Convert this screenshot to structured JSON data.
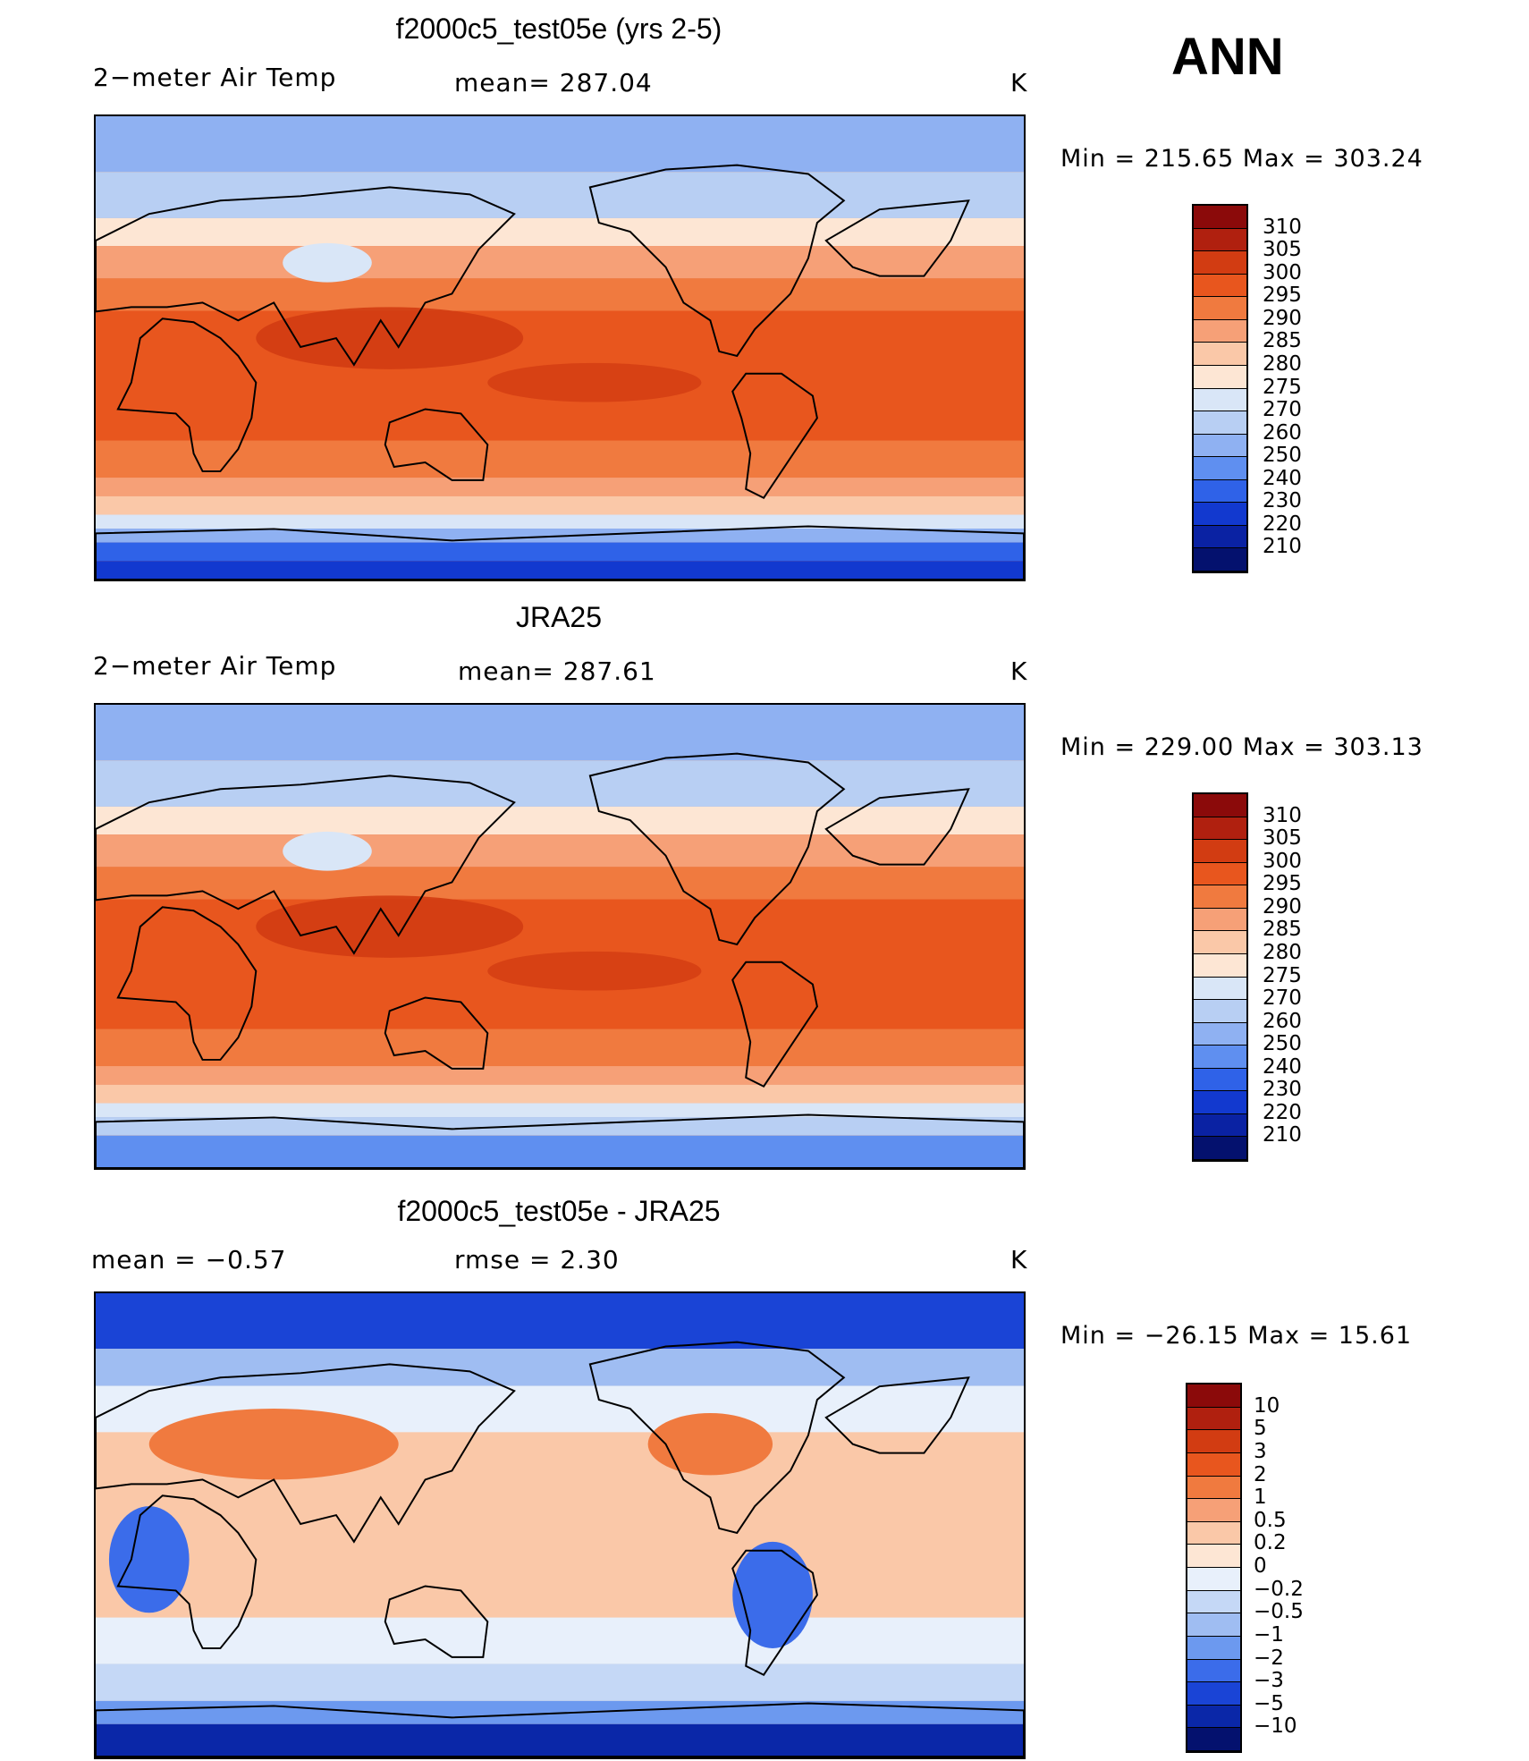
{
  "season": "ANN",
  "panels": [
    {
      "title": "f2000c5_test05e (yrs 2-5)",
      "left_label": "2−meter Air Temp",
      "center_label": "mean= 287.04",
      "units": "K",
      "min_max": "Min = 215.65 Max = 303.24",
      "field": "model"
    },
    {
      "title": "JRA25",
      "left_label": "2−meter Air Temp",
      "center_label": "mean= 287.61",
      "units": "K",
      "min_max": "Min = 229.00 Max = 303.13",
      "field": "obs"
    },
    {
      "title": "f2000c5_test05e - JRA25",
      "left_label": "mean =   −0.57",
      "center_label": "rmse =    2.30",
      "units": "K",
      "min_max": "Min = −26.15 Max =   15.61",
      "field": "diff"
    }
  ],
  "colorbars": {
    "absolute": {
      "labels": [
        "310",
        "305",
        "300",
        "295",
        "290",
        "285",
        "280",
        "275",
        "270",
        "260",
        "250",
        "240",
        "230",
        "220",
        "210"
      ],
      "colors": [
        "#8b0a0a",
        "#b0200f",
        "#d23c12",
        "#e8561e",
        "#f07a3f",
        "#f6a077",
        "#fac8a8",
        "#fde6d4",
        "#d9e6f7",
        "#b8cff3",
        "#8fb1f2",
        "#5f8ff0",
        "#2f62e8",
        "#1239cf",
        "#0a22a3",
        "#04116e"
      ]
    },
    "difference": {
      "labels": [
        "10",
        "5",
        "3",
        "2",
        "1",
        "0.5",
        "0.2",
        "0",
        "−0.2",
        "−0.5",
        "−1",
        "−2",
        "−3",
        "−5",
        "−10"
      ],
      "colors": [
        "#8b0a0a",
        "#b0200f",
        "#d23c12",
        "#e8561e",
        "#f07a3f",
        "#f6a077",
        "#fac8a8",
        "#fde6d4",
        "#e8f0fb",
        "#c5d8f6",
        "#9fbdf2",
        "#6c99ef",
        "#3b6cea",
        "#1a44d6",
        "#0a27a8",
        "#04116e"
      ]
    }
  }
}
